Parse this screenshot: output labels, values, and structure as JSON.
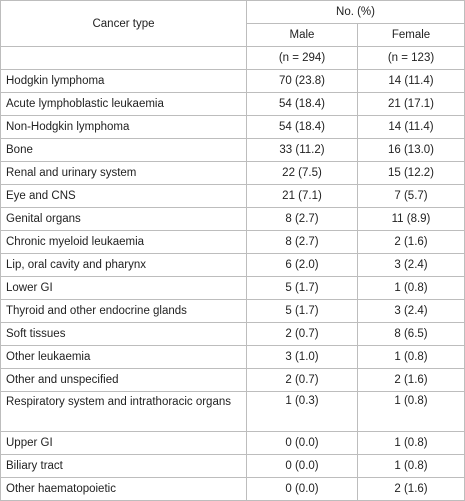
{
  "header": {
    "row_label": "Cancer type",
    "group": "No. (%)",
    "columns": [
      "Male",
      "Female"
    ],
    "counts": [
      "(n = 294)",
      "(n = 123)"
    ]
  },
  "table": {
    "rows": [
      [
        "Hodgkin lymphoma",
        "70 (23.8)",
        "14 (11.4)"
      ],
      [
        "Acute lymphoblastic leukaemia",
        "54 (18.4)",
        "21 (17.1)"
      ],
      [
        "Non-Hodgkin lymphoma",
        "54 (18.4)",
        "14 (11.4)"
      ],
      [
        "Bone",
        "33 (11.2)",
        "16 (13.0)"
      ],
      [
        "Renal and urinary system",
        "22 (7.5)",
        "15 (12.2)"
      ],
      [
        "Eye and CNS",
        "21 (7.1)",
        "7 (5.7)"
      ],
      [
        "Genital organs",
        "8 (2.7)",
        "11 (8.9)"
      ],
      [
        "Chronic myeloid leukaemia",
        "8 (2.7)",
        "2 (1.6)"
      ],
      [
        "Lip, oral cavity and pharynx",
        "6 (2.0)",
        "3 (2.4)"
      ],
      [
        "Lower GI",
        "5 (1.7)",
        "1 (0.8)"
      ],
      [
        "Thyroid and other endocrine glands",
        "5 (1.7)",
        "3 (2.4)"
      ],
      [
        "Soft tissues",
        "2 (0.7)",
        "8 (6.5)"
      ],
      [
        "Other leukaemia",
        "3 (1.0)",
        "1 (0.8)"
      ],
      [
        "Other and unspecified",
        "2 (0.7)",
        "2 (1.6)"
      ],
      [
        "Respiratory system and intrathoracic organs",
        "1 (0.3)",
        "1 (0.8)"
      ],
      [
        "Upper GI",
        "0 (0.0)",
        "1 (0.8)"
      ],
      [
        "Biliary tract",
        "0 (0.0)",
        "1 (0.8)"
      ],
      [
        "Other haematopoietic",
        "0 (0.0)",
        "2 (1.6)"
      ]
    ]
  }
}
